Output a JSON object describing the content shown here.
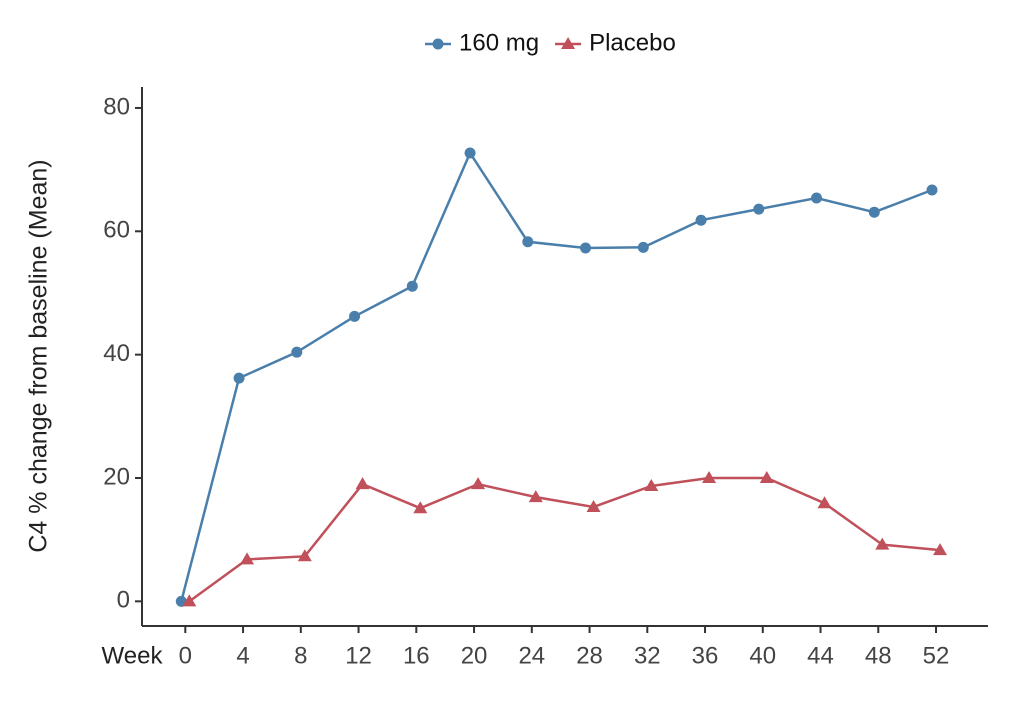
{
  "chart_data": {
    "type": "line",
    "x_label": "Week",
    "y_label": "C4 % change from baseline (Mean)",
    "x": [
      0,
      4,
      8,
      12,
      16,
      20,
      24,
      28,
      32,
      36,
      40,
      44,
      48,
      52
    ],
    "series": [
      {
        "name": "160 mg",
        "color": "#4a7fab",
        "marker": "circle",
        "values": [
          0,
          36.2,
          40.4,
          46.2,
          51.1,
          72.7,
          58.3,
          57.3,
          57.4,
          61.8,
          63.6,
          65.4,
          63.1,
          66.7
        ]
      },
      {
        "name": "Placebo",
        "color": "#c0505a",
        "marker": "triangle",
        "values": [
          0,
          6.8,
          7.3,
          19.0,
          15.1,
          19.0,
          16.9,
          15.3,
          18.7,
          20.0,
          20.0,
          15.9,
          9.2,
          8.3
        ]
      }
    ],
    "xlim": [
      -3,
      55.6
    ],
    "xticks": [
      0,
      4,
      8,
      12,
      16,
      20,
      24,
      28,
      32,
      36,
      40,
      44,
      48,
      52
    ],
    "ylim": [
      -4,
      83.4
    ],
    "yticks": [
      0,
      20,
      40,
      60,
      80
    ],
    "grid": false,
    "legend": "top"
  }
}
